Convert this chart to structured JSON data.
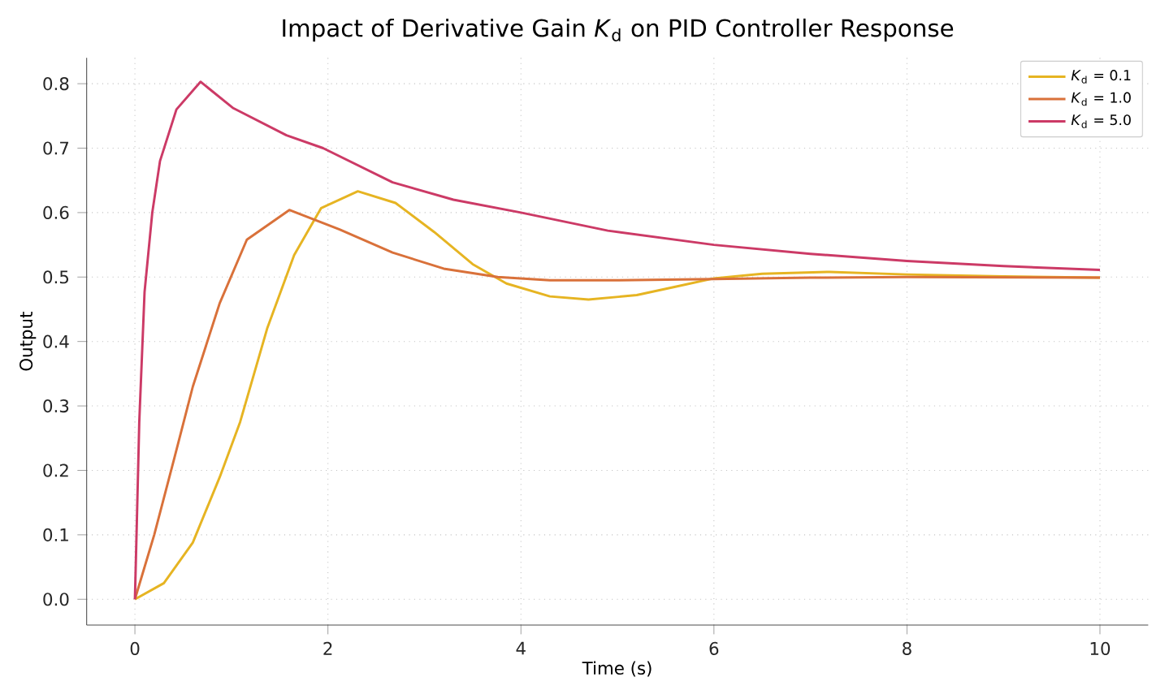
{
  "chart_data": {
    "type": "line",
    "title": "Impact of Derivative Gain *K*$_{d}$ on PID Controller Response",
    "xlabel": "Time (s)",
    "ylabel": "Output",
    "xlim": [
      -0.5,
      10.5
    ],
    "ylim": [
      -0.04,
      0.84
    ],
    "xticks": [
      0,
      2,
      4,
      6,
      8,
      10
    ],
    "yticks": [
      {
        "value": 0,
        "label": "0.0"
      },
      0.1,
      0.2,
      0.3,
      0.4,
      0.5,
      0.6,
      0.7,
      0.8
    ],
    "grid": true,
    "legend": "top right",
    "series": [
      {
        "name": "*K*$_{d}$ = 0.1",
        "color": "#e6b422",
        "x": [
          0,
          0.3,
          0.6,
          0.88,
          1.09,
          1.37,
          1.65,
          1.93,
          2.31,
          2.7,
          3.1,
          3.5,
          3.85,
          4.3,
          4.7,
          5.2,
          5.6,
          6.0,
          6.5,
          7.2,
          8,
          9,
          10
        ],
        "values": [
          0,
          0.025,
          0.088,
          0.19,
          0.275,
          0.42,
          0.534,
          0.607,
          0.633,
          0.615,
          0.57,
          0.52,
          0.49,
          0.47,
          0.465,
          0.472,
          0.485,
          0.498,
          0.505,
          0.508,
          0.504,
          0.501,
          0.499
        ]
      },
      {
        "name": "*K*$_{d}$ = 1.0",
        "color": "#d9713a",
        "x": [
          0,
          0.1,
          0.2,
          0.41,
          0.6,
          0.88,
          1.16,
          1.6,
          2.12,
          2.67,
          3.2,
          3.76,
          4.3,
          5,
          6,
          7,
          8,
          10
        ],
        "values": [
          0,
          0.05,
          0.1,
          0.22,
          0.33,
          0.46,
          0.558,
          0.604,
          0.574,
          0.538,
          0.513,
          0.5,
          0.495,
          0.495,
          0.497,
          0.499,
          0.5,
          0.499
        ]
      },
      {
        "name": "*K*$_{d}$ = 5.0",
        "color": "#cc3a66",
        "x": [
          0,
          0.02,
          0.045,
          0.1,
          0.18,
          0.26,
          0.43,
          0.68,
          1.02,
          1.57,
          1.95,
          2.67,
          3.3,
          4,
          4.9,
          6,
          7,
          8,
          9,
          10
        ],
        "values": [
          0,
          0.12,
          0.275,
          0.477,
          0.6,
          0.68,
          0.76,
          0.803,
          0.762,
          0.72,
          0.7,
          0.647,
          0.62,
          0.6,
          0.572,
          0.55,
          0.536,
          0.525,
          0.517,
          0.511
        ]
      }
    ]
  }
}
